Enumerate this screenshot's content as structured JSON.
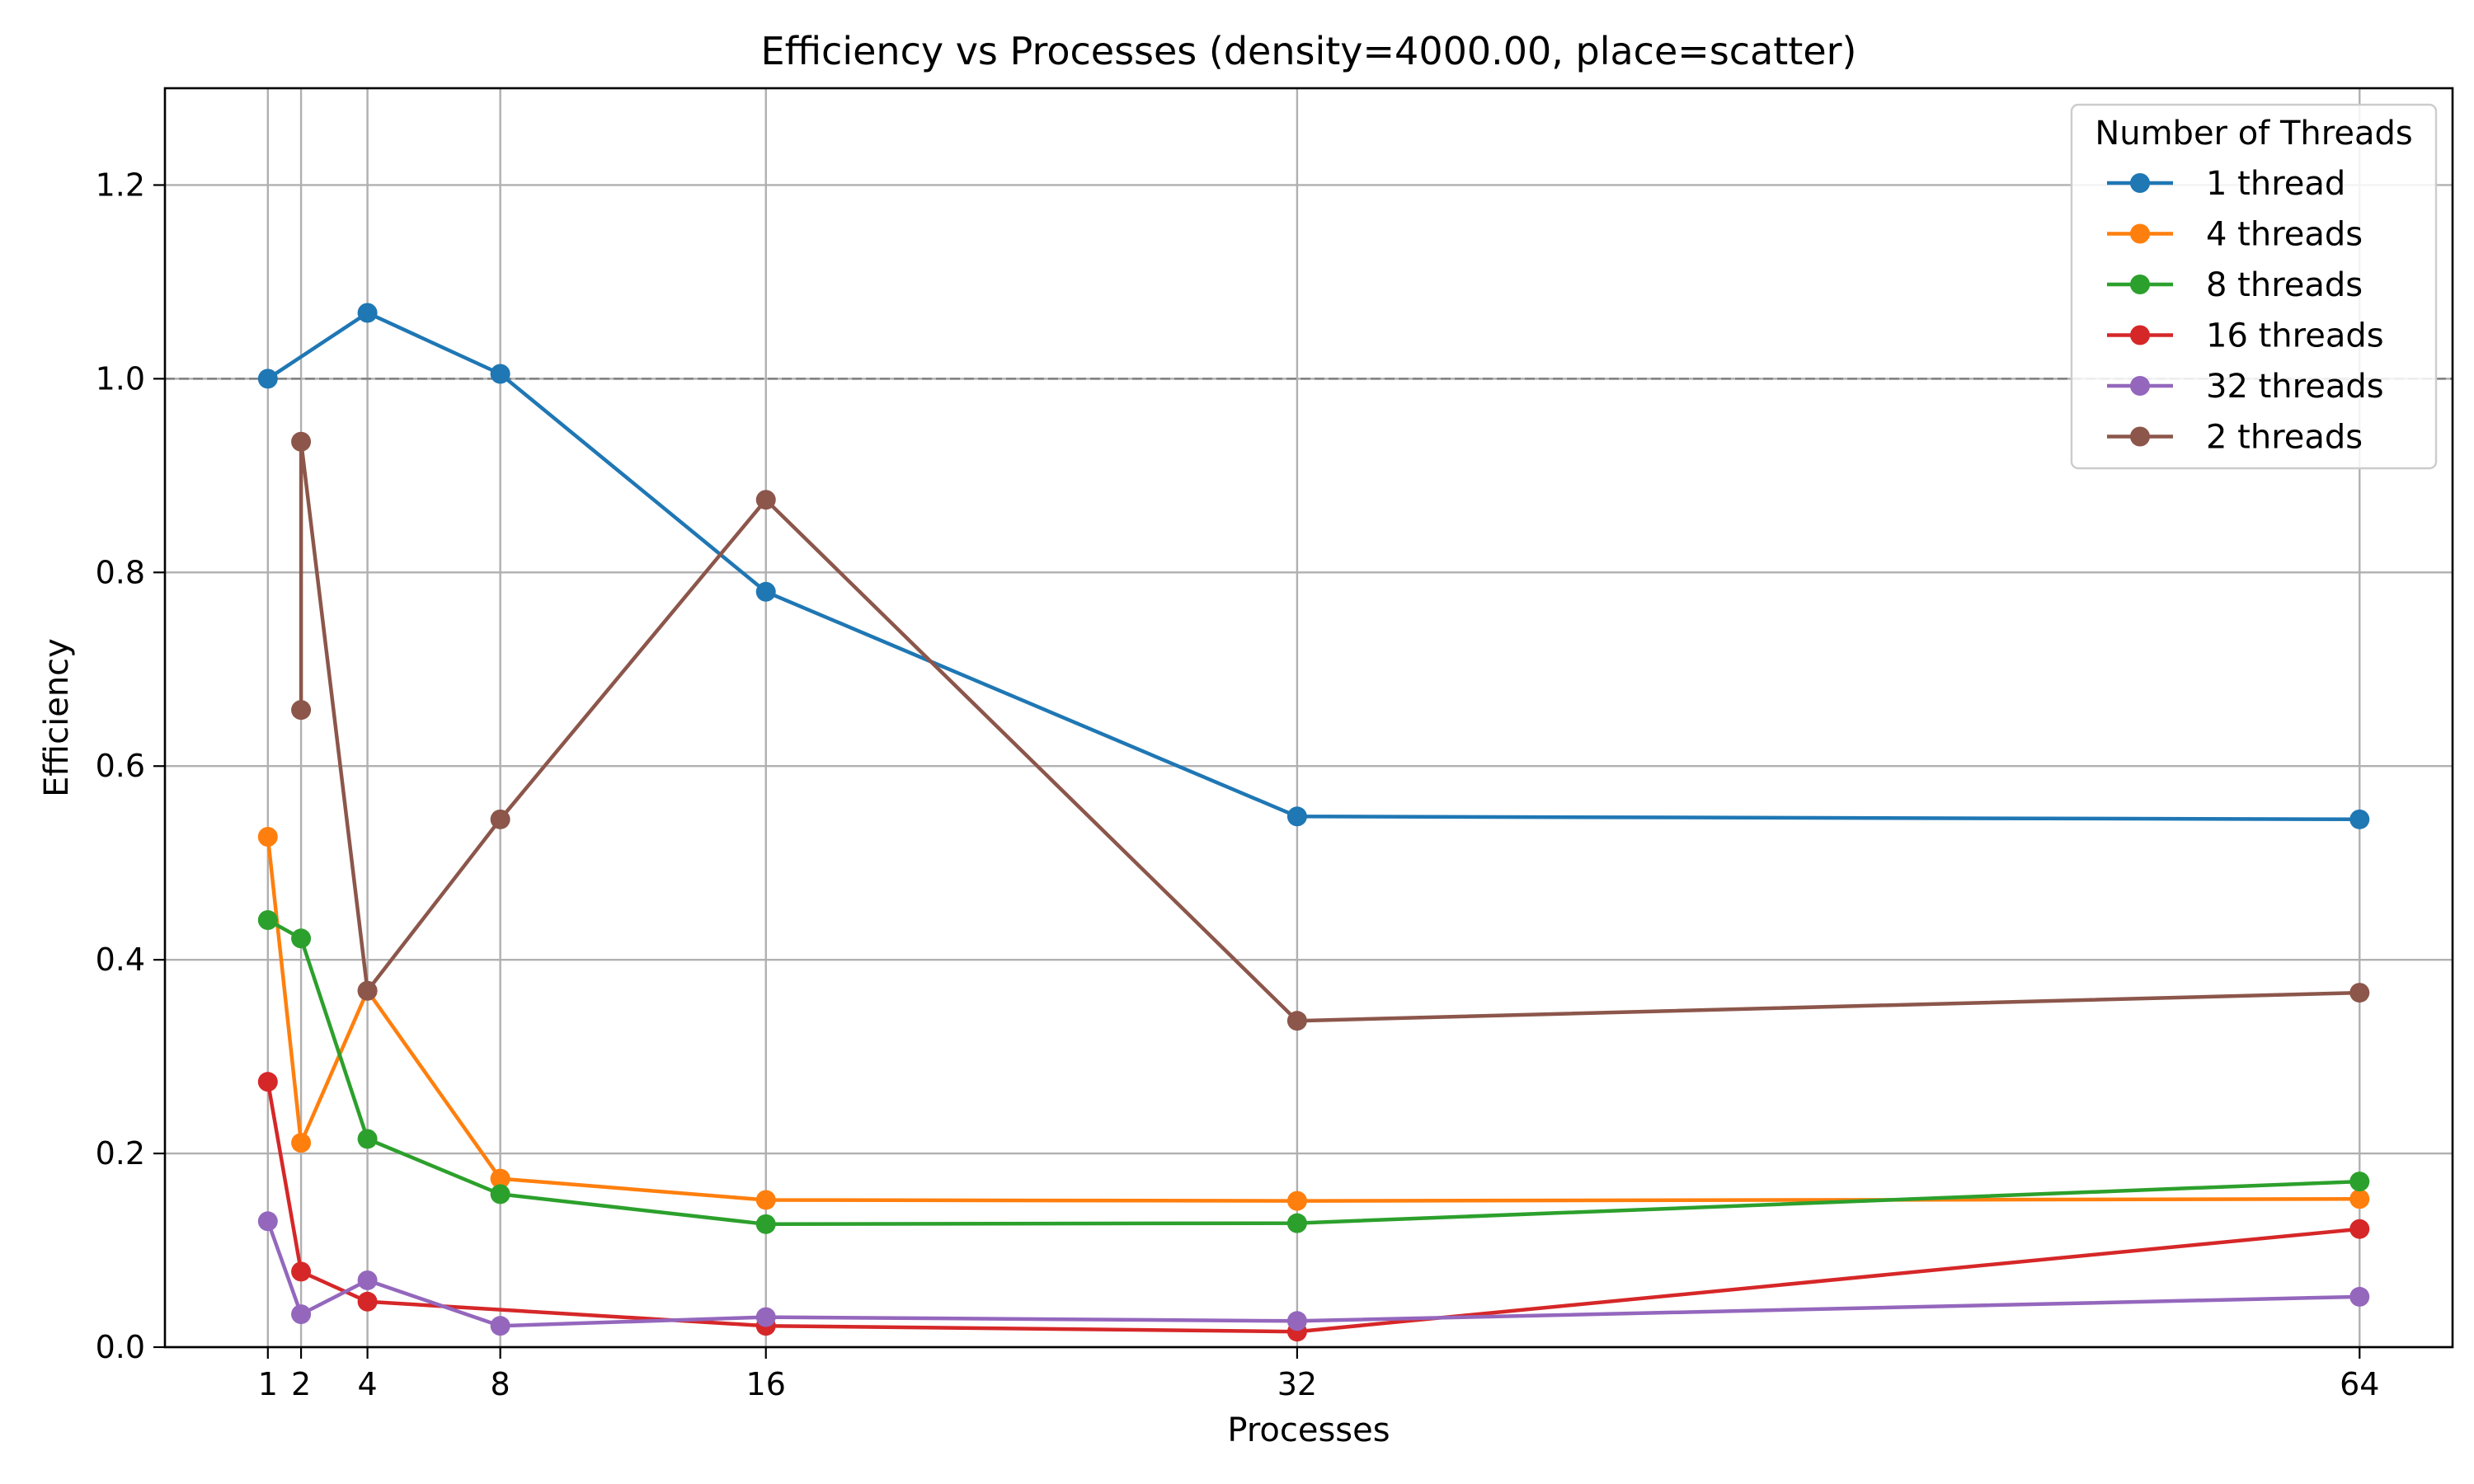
{
  "chart_data": {
    "type": "line",
    "title": "Efficiency vs Processes (density=4000.00, place=scatter)",
    "xlabel": "Processes",
    "ylabel": "Efficiency",
    "x": [
      1,
      2,
      4,
      8,
      16,
      32,
      64
    ],
    "x_tick_labels": [
      "1",
      "2",
      "4",
      "8",
      "16",
      "32",
      "64"
    ],
    "xlim": [
      -2.1,
      66.8
    ],
    "ylim": [
      0.0,
      1.3
    ],
    "y_ticks": [
      0.0,
      0.2,
      0.4,
      0.6,
      0.8,
      1.0,
      1.2
    ],
    "y_tick_labels": [
      "0.0",
      "0.2",
      "0.4",
      "0.6",
      "0.8",
      "1.0",
      "1.2"
    ],
    "grid": true,
    "reference_line": {
      "y": 1.0,
      "style": "dashed",
      "color": "#808080"
    },
    "legend": {
      "title": "Number of Threads",
      "placement": "top-right"
    },
    "series": [
      {
        "name": "1 thread",
        "color": "#1f77b4",
        "points": [
          [
            1,
            1.0
          ],
          [
            4,
            1.068
          ],
          [
            8,
            1.005
          ],
          [
            16,
            0.78
          ],
          [
            32,
            0.548
          ],
          [
            64,
            0.545
          ]
        ]
      },
      {
        "name": "4 threads",
        "color": "#ff7f0e",
        "points": [
          [
            1,
            0.527
          ],
          [
            2,
            0.211
          ],
          [
            4,
            0.368
          ],
          [
            8,
            0.174
          ],
          [
            16,
            0.152
          ],
          [
            32,
            0.151
          ],
          [
            64,
            0.153
          ]
        ]
      },
      {
        "name": "8 threads",
        "color": "#2ca02c",
        "points": [
          [
            1,
            0.441
          ],
          [
            2,
            0.422
          ],
          [
            4,
            0.215
          ],
          [
            8,
            0.158
          ],
          [
            16,
            0.127
          ],
          [
            32,
            0.128
          ],
          [
            64,
            0.171
          ]
        ]
      },
      {
        "name": "16 threads",
        "color": "#d62728",
        "points": [
          [
            1,
            0.274
          ],
          [
            2,
            0.078
          ],
          [
            4,
            0.047
          ],
          [
            16,
            0.022
          ],
          [
            32,
            0.016
          ],
          [
            64,
            0.122
          ]
        ]
      },
      {
        "name": "32 threads",
        "color": "#9467bd",
        "points": [
          [
            1,
            0.13
          ],
          [
            2,
            0.034
          ],
          [
            4,
            0.069
          ],
          [
            8,
            0.022
          ],
          [
            16,
            0.031
          ],
          [
            32,
            0.027
          ],
          [
            64,
            0.052
          ]
        ]
      },
      {
        "name": "2 threads",
        "color": "#8c564b",
        "points": [
          [
            2,
            0.658
          ],
          [
            2,
            0.935
          ],
          [
            4,
            0.368
          ],
          [
            8,
            0.545
          ],
          [
            16,
            0.875
          ],
          [
            32,
            0.337
          ],
          [
            64,
            0.366
          ]
        ]
      }
    ]
  }
}
